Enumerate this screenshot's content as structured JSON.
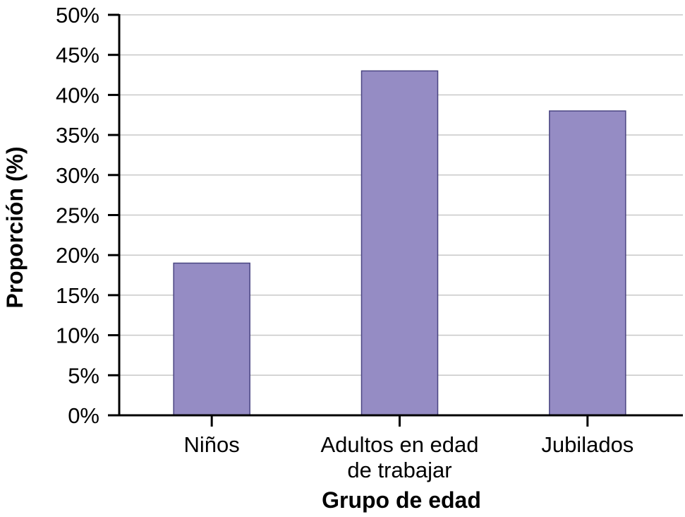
{
  "chart_data": {
    "type": "bar",
    "title": "",
    "xlabel": "Grupo de edad",
    "ylabel": "Proporción (%)",
    "categories": [
      [
        "Niños"
      ],
      [
        "Adultos en edad",
        "de trabajar"
      ],
      [
        "Jubilados"
      ]
    ],
    "values": [
      19,
      43,
      38
    ],
    "ylim": [
      0,
      50
    ],
    "yticks": [
      0,
      5,
      10,
      15,
      20,
      25,
      30,
      35,
      40,
      45,
      50
    ],
    "ytick_labels": [
      "0%",
      "5%",
      "10%",
      "15%",
      "20%",
      "25%",
      "30%",
      "35%",
      "40%",
      "45%",
      "50%"
    ],
    "grid": true,
    "legend": "none",
    "colors": {
      "bar_fill": "#958cc4",
      "bar_stroke": "#4a4582",
      "grid": "#c8c8c8",
      "axis": "#000000"
    }
  }
}
